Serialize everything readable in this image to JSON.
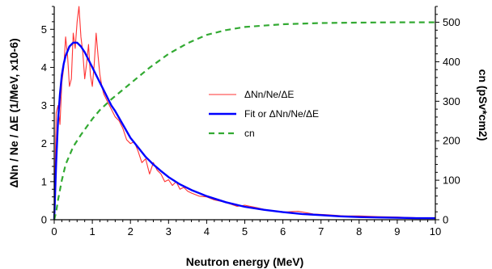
{
  "chart_data": {
    "type": "line",
    "x_axis": {
      "label": "Neutron energy (MeV)",
      "range": [
        0,
        10
      ],
      "ticks": [
        "0",
        "1",
        "2",
        "3",
        "4",
        "5",
        "6",
        "7",
        "8",
        "9",
        "10"
      ]
    },
    "y_axis_left": {
      "label": "ΔNn / Ne / ΔE (1/MeV, x10-6)",
      "range": [
        0,
        5.6
      ],
      "ticks": [
        "0",
        "1",
        "2",
        "3",
        "4",
        "5"
      ]
    },
    "y_axis_right": {
      "label": "cn (pSv*cm2)",
      "range": [
        0,
        540
      ],
      "ticks": [
        "0",
        "100",
        "200",
        "300",
        "400",
        "500"
      ]
    },
    "legend": {
      "placement": "center",
      "entries": [
        "ΔNn/Ne/ΔE",
        "Fit or ΔNn/Ne/ΔE",
        "cn"
      ]
    },
    "grid": false,
    "series": [
      {
        "name": "ΔNn/Ne/ΔE",
        "axis": "left",
        "color": "#ff3333",
        "x": [
          0.0,
          0.05,
          0.1,
          0.15,
          0.2,
          0.25,
          0.3,
          0.35,
          0.4,
          0.45,
          0.5,
          0.55,
          0.6,
          0.65,
          0.7,
          0.75,
          0.8,
          0.85,
          0.9,
          0.95,
          1.0,
          1.05,
          1.1,
          1.15,
          1.2,
          1.25,
          1.3,
          1.35,
          1.4,
          1.5,
          1.6,
          1.7,
          1.8,
          1.9,
          2.0,
          2.1,
          2.2,
          2.3,
          2.4,
          2.5,
          2.6,
          2.7,
          2.8,
          2.9,
          3.0,
          3.1,
          3.2,
          3.3,
          3.4,
          3.5,
          3.6,
          3.8,
          4.0,
          4.2,
          4.4,
          4.6,
          4.8,
          5.0,
          5.3,
          5.6,
          6.0,
          6.4,
          6.8,
          7.2,
          7.6,
          8.0,
          8.5,
          9.0,
          9.5,
          10.0
        ],
        "y": [
          0.05,
          2.8,
          3.0,
          2.5,
          3.6,
          4.0,
          4.8,
          4.3,
          3.5,
          3.7,
          4.9,
          4.5,
          5.2,
          5.6,
          4.8,
          4.4,
          3.7,
          4.1,
          4.6,
          3.8,
          3.5,
          4.1,
          4.9,
          4.3,
          3.8,
          3.5,
          3.3,
          3.2,
          3.1,
          2.9,
          2.7,
          2.6,
          2.4,
          2.1,
          2.0,
          2.05,
          1.8,
          1.5,
          1.6,
          1.2,
          1.5,
          1.3,
          1.2,
          1.0,
          1.05,
          0.9,
          1.0,
          0.8,
          0.85,
          0.75,
          0.7,
          0.62,
          0.6,
          0.52,
          0.48,
          0.42,
          0.35,
          0.38,
          0.32,
          0.25,
          0.2,
          0.22,
          0.15,
          0.13,
          0.1,
          0.1,
          0.08,
          0.07,
          0.05,
          0.05
        ]
      },
      {
        "name": "Fit or ΔNn/Ne/ΔE",
        "axis": "left",
        "color": "#0000ff",
        "x": [
          0.0,
          0.05,
          0.1,
          0.15,
          0.2,
          0.25,
          0.3,
          0.4,
          0.5,
          0.6,
          0.7,
          0.8,
          0.9,
          1.0,
          1.1,
          1.2,
          1.3,
          1.4,
          1.5,
          1.6,
          1.8,
          2.0,
          2.2,
          2.4,
          2.6,
          2.8,
          3.0,
          3.3,
          3.6,
          4.0,
          4.5,
          5.0,
          5.5,
          6.0,
          6.5,
          7.0,
          7.5,
          8.0,
          8.5,
          9.0,
          9.5,
          10.0
        ],
        "y": [
          0.0,
          1.5,
          2.6,
          3.3,
          3.8,
          4.1,
          4.3,
          4.55,
          4.65,
          4.65,
          4.55,
          4.4,
          4.2,
          4.0,
          3.8,
          3.6,
          3.4,
          3.2,
          3.0,
          2.85,
          2.5,
          2.15,
          1.9,
          1.65,
          1.45,
          1.28,
          1.12,
          0.93,
          0.78,
          0.62,
          0.46,
          0.34,
          0.26,
          0.2,
          0.15,
          0.12,
          0.09,
          0.07,
          0.06,
          0.05,
          0.04,
          0.04
        ]
      },
      {
        "name": "cn",
        "axis": "right",
        "color": "#33aa33",
        "dashed": true,
        "x": [
          0.0,
          0.05,
          0.1,
          0.2,
          0.3,
          0.5,
          0.7,
          1.0,
          1.2,
          1.5,
          2.0,
          2.5,
          3.0,
          3.5,
          4.0,
          4.5,
          5.0,
          6.0,
          7.0,
          8.0,
          9.0,
          10.0
        ],
        "y": [
          0,
          20,
          50,
          100,
          140,
          185,
          215,
          255,
          278,
          305,
          345,
          385,
          420,
          447,
          468,
          480,
          488,
          495,
          498,
          499,
          500,
          500
        ]
      }
    ]
  }
}
